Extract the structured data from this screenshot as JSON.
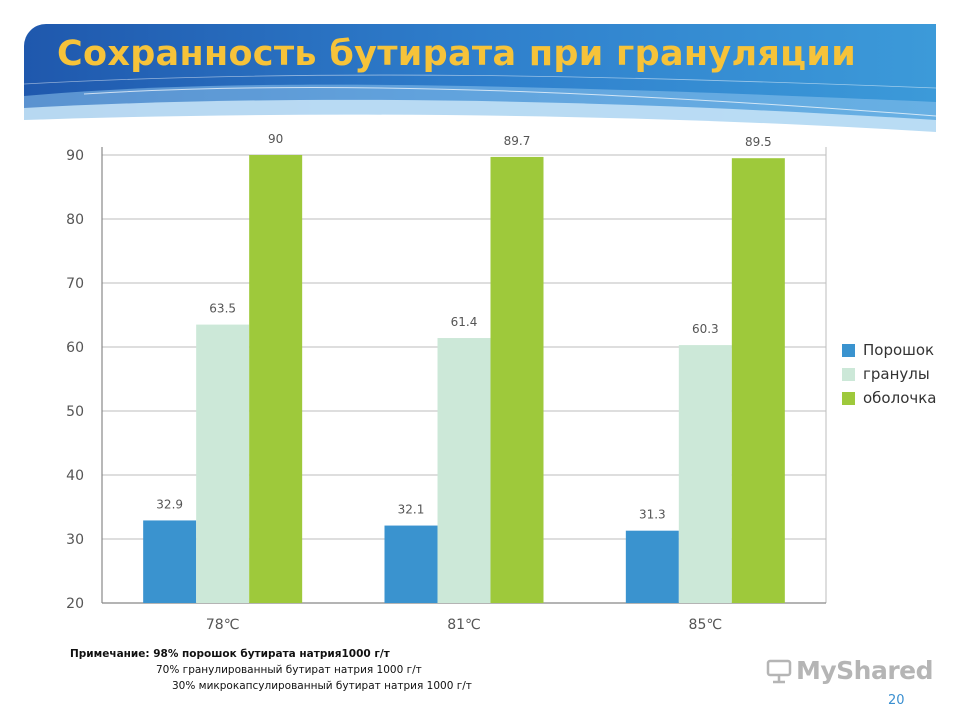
{
  "slide": {
    "title": "Сохранность бутирата при грануляции",
    "page_number": "20",
    "logo_text": "MyShared"
  },
  "note": {
    "line1": "Примечание: 98% порошок бутирата натрия1000 г/т",
    "line2": "70% гранулированный бутират натрия  1000 г/т",
    "line3": "30% микрокапсулированный бутират натрия 1000 г/т"
  },
  "legend": [
    {
      "label": "Порошок",
      "color": "#3a93cf"
    },
    {
      "label": "гранулы",
      "color": "#cce8d8"
    },
    {
      "label": "оболочка",
      "color": "#9ec93b"
    }
  ],
  "chart_data": {
    "type": "bar",
    "categories": [
      "78℃",
      "81℃",
      "85℃"
    ],
    "series": [
      {
        "name": "Порошок",
        "values": [
          32.9,
          32.1,
          31.3
        ],
        "labels": [
          "32.9",
          "32.1",
          "31.3"
        ],
        "color": "#3a93cf"
      },
      {
        "name": "гранулы",
        "values": [
          63.5,
          61.4,
          60.3
        ],
        "labels": [
          "63.5",
          "61.4",
          "60.3"
        ],
        "color": "#cce8d8"
      },
      {
        "name": "оболочка",
        "values": [
          90,
          89.7,
          89.5
        ],
        "labels": [
          "90",
          "89.7",
          "89.5"
        ],
        "color": "#9ec93b"
      }
    ],
    "yticks": [
      "20",
      "30",
      "40",
      "50",
      "60",
      "70",
      "80",
      "90"
    ],
    "ylim": [
      20,
      90
    ],
    "grid": true,
    "legend_position": "right"
  }
}
